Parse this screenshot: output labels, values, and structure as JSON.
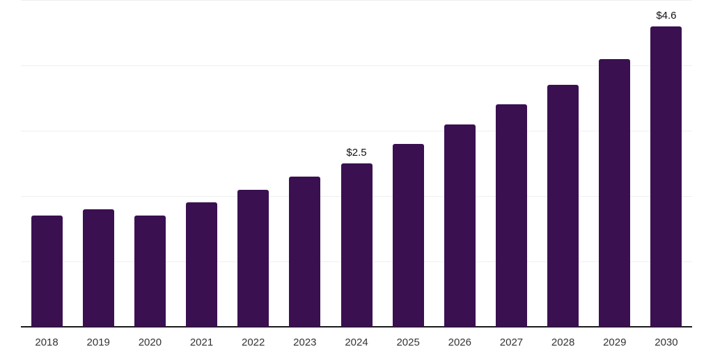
{
  "chart_data": {
    "type": "bar",
    "title": "",
    "xlabel": "",
    "ylabel": "",
    "categories": [
      "2018",
      "2019",
      "2020",
      "2021",
      "2022",
      "2023",
      "2024",
      "2025",
      "2026",
      "2027",
      "2028",
      "2029",
      "2030"
    ],
    "values": [
      1.7,
      1.8,
      1.7,
      1.9,
      2.1,
      2.3,
      2.5,
      2.8,
      3.1,
      3.4,
      3.7,
      4.1,
      4.6
    ],
    "bar_labels": [
      null,
      null,
      null,
      null,
      null,
      null,
      "$2.5",
      null,
      null,
      null,
      null,
      null,
      "$4.6"
    ],
    "ylim": [
      0,
      5
    ],
    "grid": "horizontal-only",
    "gridline_values": [
      1,
      2,
      3,
      4,
      5
    ],
    "legend": "none",
    "colors": {
      "bar": "#3A1051",
      "axis_line": "#1a1a1a",
      "gridline": "#efefef",
      "tick_label": "#333333",
      "value_label": "#111111",
      "background": "#ffffff"
    }
  }
}
